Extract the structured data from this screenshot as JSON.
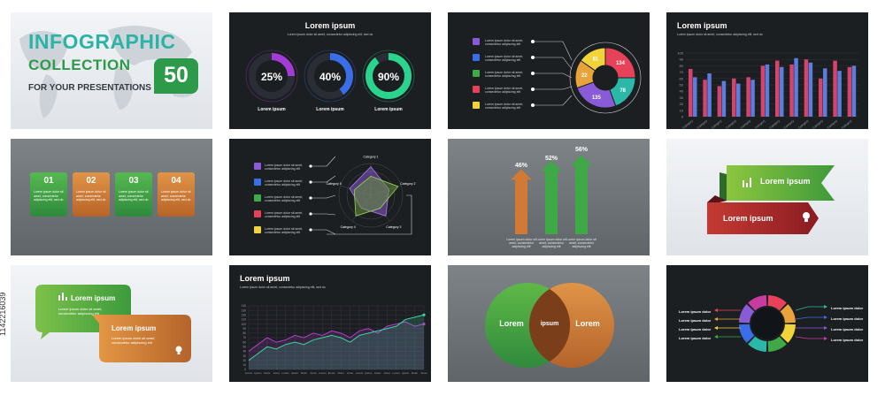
{
  "cover": {
    "title_line1": "INFOGRAPHIC",
    "title_line2": "COLLECTION",
    "number": "50",
    "subtitle": "FOR YOUR PRESENTATIONS",
    "colors": {
      "teal": "#2bb3a6",
      "green": "#2c9a48"
    }
  },
  "slide_rings": {
    "title": "Lorem ipsum",
    "subtitle": "Lorem ipsum dolor sit amet, consectetur adipiscing elit, sed do",
    "rings": [
      {
        "value": "25%",
        "fraction": 0.25,
        "label": "Lorem ipsum",
        "color": "#a33cd6"
      },
      {
        "value": "40%",
        "fraction": 0.4,
        "label": "Lorem ipsum",
        "color": "#3a6ee8"
      },
      {
        "value": "90%",
        "fraction": 0.9,
        "label": "Lorem ipsum",
        "color": "#2ad48d"
      }
    ]
  },
  "slide_donut": {
    "item_text": "Lorem ipsum dolor sit amet, consectetur adipiscing elit",
    "segments": [
      {
        "value": "134",
        "color": "#e8425a"
      },
      {
        "value": "78",
        "color": "#2bb8a8"
      },
      {
        "value": "135",
        "color": "#8a5bd6"
      },
      {
        "value": "22",
        "color": "#e8a33a"
      },
      {
        "value": "81",
        "color": "#f0d43a"
      }
    ]
  },
  "slide_bars": {
    "title": "Lorem ipsum",
    "subtitle": "Lorem ipsum dolor sit amet, consectetur adipiscing elit, sed do",
    "yticks": [
      "100",
      "90",
      "80",
      "70",
      "60",
      "50",
      "40",
      "30",
      "20",
      "10",
      "0"
    ],
    "categories": [
      "Category",
      "Category",
      "Category",
      "Category",
      "Category",
      "Category",
      "Category",
      "Category",
      "Category",
      "Category",
      "Category",
      "Category"
    ],
    "series": [
      {
        "values": [
          75,
          58,
          48,
          60,
          62,
          80,
          88,
          82,
          90,
          60,
          88,
          78
        ],
        "color": "#d6446c"
      },
      {
        "values": [
          62,
          68,
          56,
          52,
          58,
          82,
          78,
          92,
          85,
          76,
          72,
          80
        ],
        "color": "#5b7de0"
      }
    ]
  },
  "slide_cards": {
    "cards": [
      {
        "num": "01",
        "text": "Lorem ipsum dolor sit amet, consectetur adipiscing elit, sed do",
        "color": "#3f9f45"
      },
      {
        "num": "02",
        "text": "Lorem ipsum dolor sit amet, consectetur adipiscing elit, sed do",
        "color": "#c8732e"
      },
      {
        "num": "03",
        "text": "Lorem ipsum dolor sit amet, consectetur adipiscing elit, sed do",
        "color": "#3f9f45"
      },
      {
        "num": "04",
        "text": "Lorem ipsum dolor sit amet, consectetur adipiscing elit, sed do",
        "color": "#c8732e"
      }
    ]
  },
  "slide_radar": {
    "item_text": "Lorem ipsum dolor sit amet, consectetur adipiscing elit",
    "categories": [
      "Category 1",
      "Category 2",
      "Category 3",
      "Category 4",
      "Category 5"
    ]
  },
  "slide_arrows": {
    "arrows": [
      {
        "value": "46%",
        "fraction": 0.46,
        "text": "Lorem ipsum dolor sit amet, consectetur adipiscing elit",
        "color": "#d07a36"
      },
      {
        "value": "52%",
        "fraction": 0.52,
        "text": "Lorem ipsum dolor sit amet, consectetur adipiscing elit",
        "color": "#3fa847"
      },
      {
        "value": "56%",
        "fraction": 0.56,
        "text": "Lorem ipsum dolor sit amet, consectetur adipiscing elit",
        "color": "#3fa847"
      }
    ]
  },
  "slide_ribbons": {
    "top_label": "Lorem ipsum",
    "bottom_label": "Lorem ipsum",
    "top_color": "#4aa63a",
    "bottom_color": "#a3232a"
  },
  "slide_bubbles": {
    "green_title": "Lorem ipsum",
    "green_text": "Lorem ipsum dolor sit amet, consectetur adipiscing elit",
    "orange_title": "Lorem ipsum",
    "orange_text": "Lorem ipsum dolor sit amet, consectetur adipiscing elit"
  },
  "slide_lines": {
    "title": "Lorem ipsum",
    "subtitle": "Lorem ipsum dolor sit amet, consectetur adipiscing elit, sed do",
    "yticks": [
      "140",
      "130",
      "120",
      "110",
      "100",
      "90",
      "80",
      "70",
      "60",
      "50",
      "40",
      "30",
      "20",
      "10",
      "0"
    ],
    "xlabels": [
      "Lorem",
      "Ipsum",
      "Dolor",
      "Amet",
      "Lorem",
      "Ipsum",
      "Dolor",
      "Amet",
      "Lorem",
      "Ipsum",
      "Dolor",
      "Amet",
      "Lorem",
      "Ipsum",
      "Dolor",
      "Amet",
      "Lorem",
      "Ipsum",
      "Dolor",
      "Amet"
    ],
    "series": [
      {
        "values": [
          40,
          55,
          70,
          60,
          65,
          75,
          70,
          80,
          75,
          85,
          80,
          70,
          85,
          90,
          80,
          95,
          100,
          105,
          95,
          100
        ],
        "color": "#b040c8"
      },
      {
        "values": [
          20,
          35,
          50,
          45,
          55,
          60,
          55,
          65,
          70,
          75,
          70,
          60,
          75,
          80,
          85,
          90,
          95,
          110,
          115,
          120
        ],
        "color": "#3ad6a0"
      }
    ]
  },
  "slide_venn": {
    "left": "Lorem",
    "middle": "ipsum",
    "right": "Lorem"
  },
  "slide_cycle": {
    "left_items": [
      "Lorem ipsum dolor",
      "Lorem ipsum dolor",
      "Lorem ipsum dolor",
      "Lorem ipsum dolor"
    ],
    "right_items": [
      "Lorem ipsum dolor",
      "Lorem ipsum dolor",
      "Lorem ipsum dolor",
      "Lorem ipsum dolor"
    ],
    "colors": [
      "#e8425a",
      "#e8a33a",
      "#f0d43a",
      "#3fa847",
      "#2bb8a8",
      "#3a6ee8",
      "#8a5bd6",
      "#c83ca0"
    ]
  },
  "stock_id": "1142216039",
  "watermark": "Adobe Stock"
}
